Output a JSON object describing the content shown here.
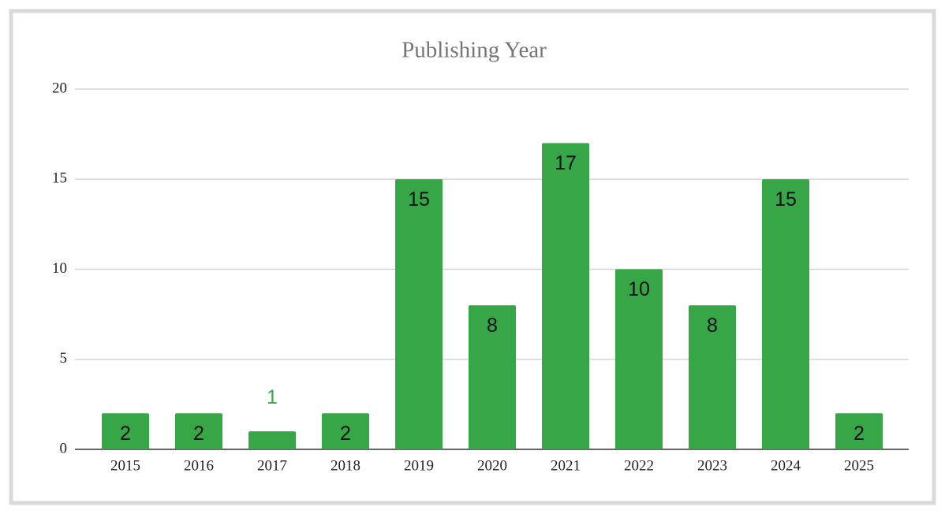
{
  "chart_data": {
    "type": "bar",
    "title": "Publishing Year",
    "categories": [
      "2015",
      "2016",
      "2017",
      "2018",
      "2019",
      "2020",
      "2021",
      "2022",
      "2023",
      "2024",
      "2025"
    ],
    "values": [
      2,
      2,
      1,
      2,
      15,
      8,
      17,
      10,
      8,
      15,
      2
    ],
    "color": "#37a647",
    "ylim": [
      0,
      20
    ],
    "yticks": [
      0,
      5,
      10,
      15,
      20
    ],
    "grid": true
  }
}
